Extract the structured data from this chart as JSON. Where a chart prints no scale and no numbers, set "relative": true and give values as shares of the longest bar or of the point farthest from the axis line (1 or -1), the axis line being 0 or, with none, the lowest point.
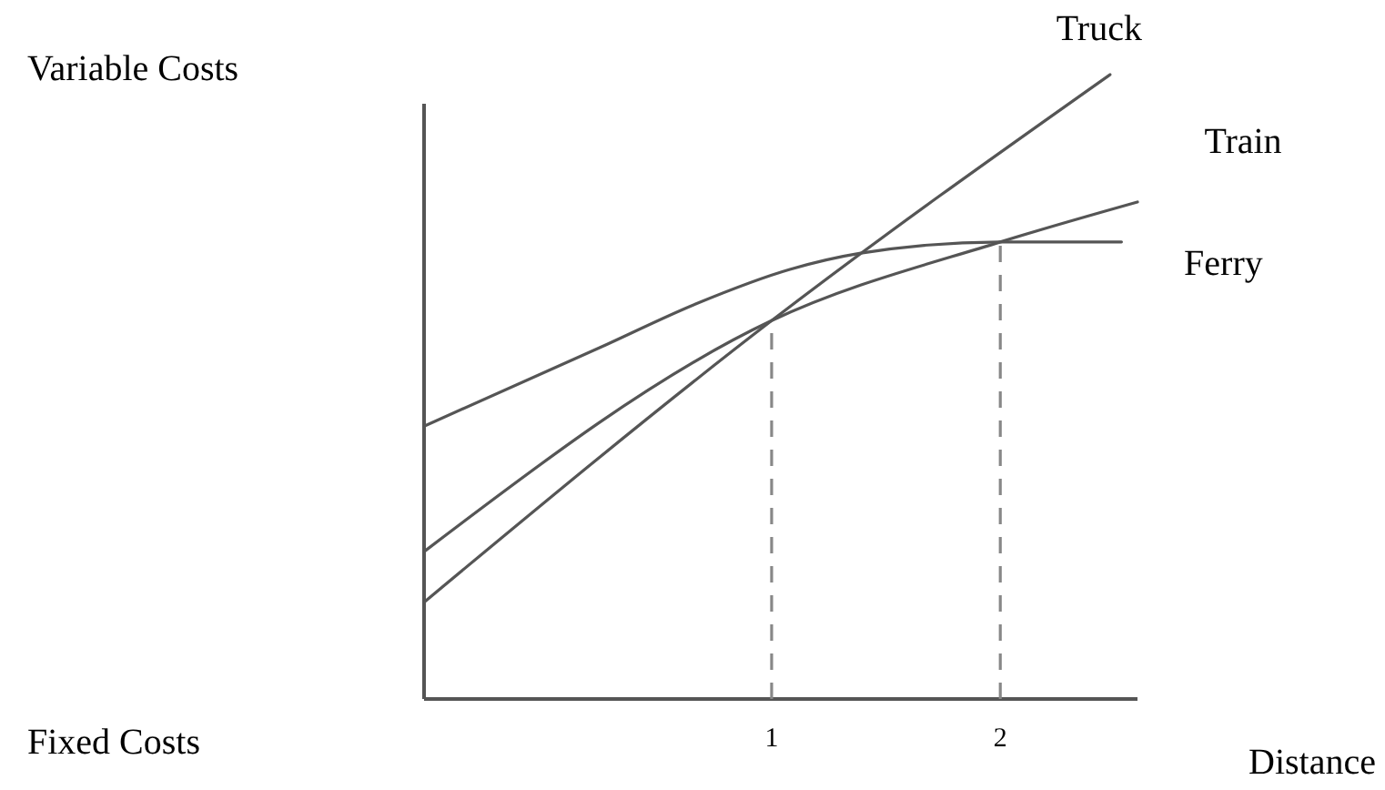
{
  "chart_data": {
    "type": "line",
    "relative": true,
    "xlabel": "Distance",
    "annotations": [
      "Variable Costs",
      "Fixed Costs"
    ],
    "ref_lines": [
      {
        "axis": "x",
        "value": 1,
        "color": "#888888",
        "line_style": "dashed"
      },
      {
        "axis": "x",
        "value": 2,
        "color": "#888888",
        "line_style": "dashed"
      }
    ],
    "xlim": [
      -0.52,
      2.6
    ],
    "xticks": [
      1,
      2
    ],
    "marker": "none",
    "grid": false,
    "series": [
      {
        "name": "Truck",
        "color": "#555555",
        "x": [
          -0.52,
          1,
          2.48
        ],
        "values": [
          0.155,
          0.606,
          1.0
        ]
      },
      {
        "name": "Train",
        "color": "#555555",
        "x": [
          -0.52,
          1,
          2,
          2.6
        ],
        "values": [
          0.236,
          0.606,
          0.732,
          0.796
        ]
      },
      {
        "name": "Ferry",
        "color": "#555555",
        "x": [
          -0.52,
          0.25,
          0.67,
          1.08,
          1.39,
          2,
          2.53
        ],
        "values": [
          0.437,
          0.563,
          0.633,
          0.688,
          0.714,
          0.732,
          0.732
        ]
      }
    ]
  }
}
